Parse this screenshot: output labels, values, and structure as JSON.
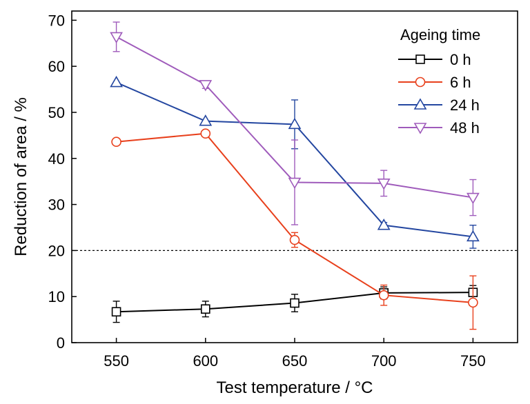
{
  "chart_data": {
    "type": "line",
    "title": "",
    "xlabel": "Test temperature / °C",
    "ylabel": "Reduction of area / %",
    "x": [
      550,
      600,
      650,
      700,
      750
    ],
    "xlim": [
      525,
      775
    ],
    "ylim": [
      0,
      72
    ],
    "xticks": [
      550,
      600,
      650,
      700,
      750
    ],
    "yticks": [
      0,
      10,
      20,
      30,
      40,
      50,
      60,
      70
    ],
    "grid": false,
    "reference_line": {
      "y": 20,
      "style": "dotted"
    },
    "legend": {
      "title": "Ageing time",
      "position": "top-right"
    },
    "series": [
      {
        "name": "0 h",
        "color": "#000000",
        "marker": "square",
        "values": [
          6.7,
          7.3,
          8.6,
          10.8,
          10.9
        ],
        "errors": [
          2.3,
          1.7,
          1.9,
          1.3,
          1.5
        ]
      },
      {
        "name": "6 h",
        "color": "#e8401c",
        "marker": "circle",
        "values": [
          43.6,
          45.4,
          22.3,
          10.3,
          8.7
        ],
        "errors": [
          0.0,
          0.0,
          1.6,
          2.2,
          5.8
        ]
      },
      {
        "name": "24 h",
        "color": "#2346a0",
        "marker": "triangle-up",
        "values": [
          56.5,
          48.1,
          47.4,
          25.5,
          23.0
        ],
        "errors": [
          0.0,
          0.0,
          5.3,
          0.6,
          2.5
        ]
      },
      {
        "name": "48 h",
        "color": "#9f5bbb",
        "marker": "triangle-down",
        "values": [
          66.4,
          56.0,
          34.8,
          34.6,
          31.5
        ],
        "errors": [
          3.2,
          0.8,
          9.2,
          2.8,
          3.9
        ]
      }
    ]
  }
}
